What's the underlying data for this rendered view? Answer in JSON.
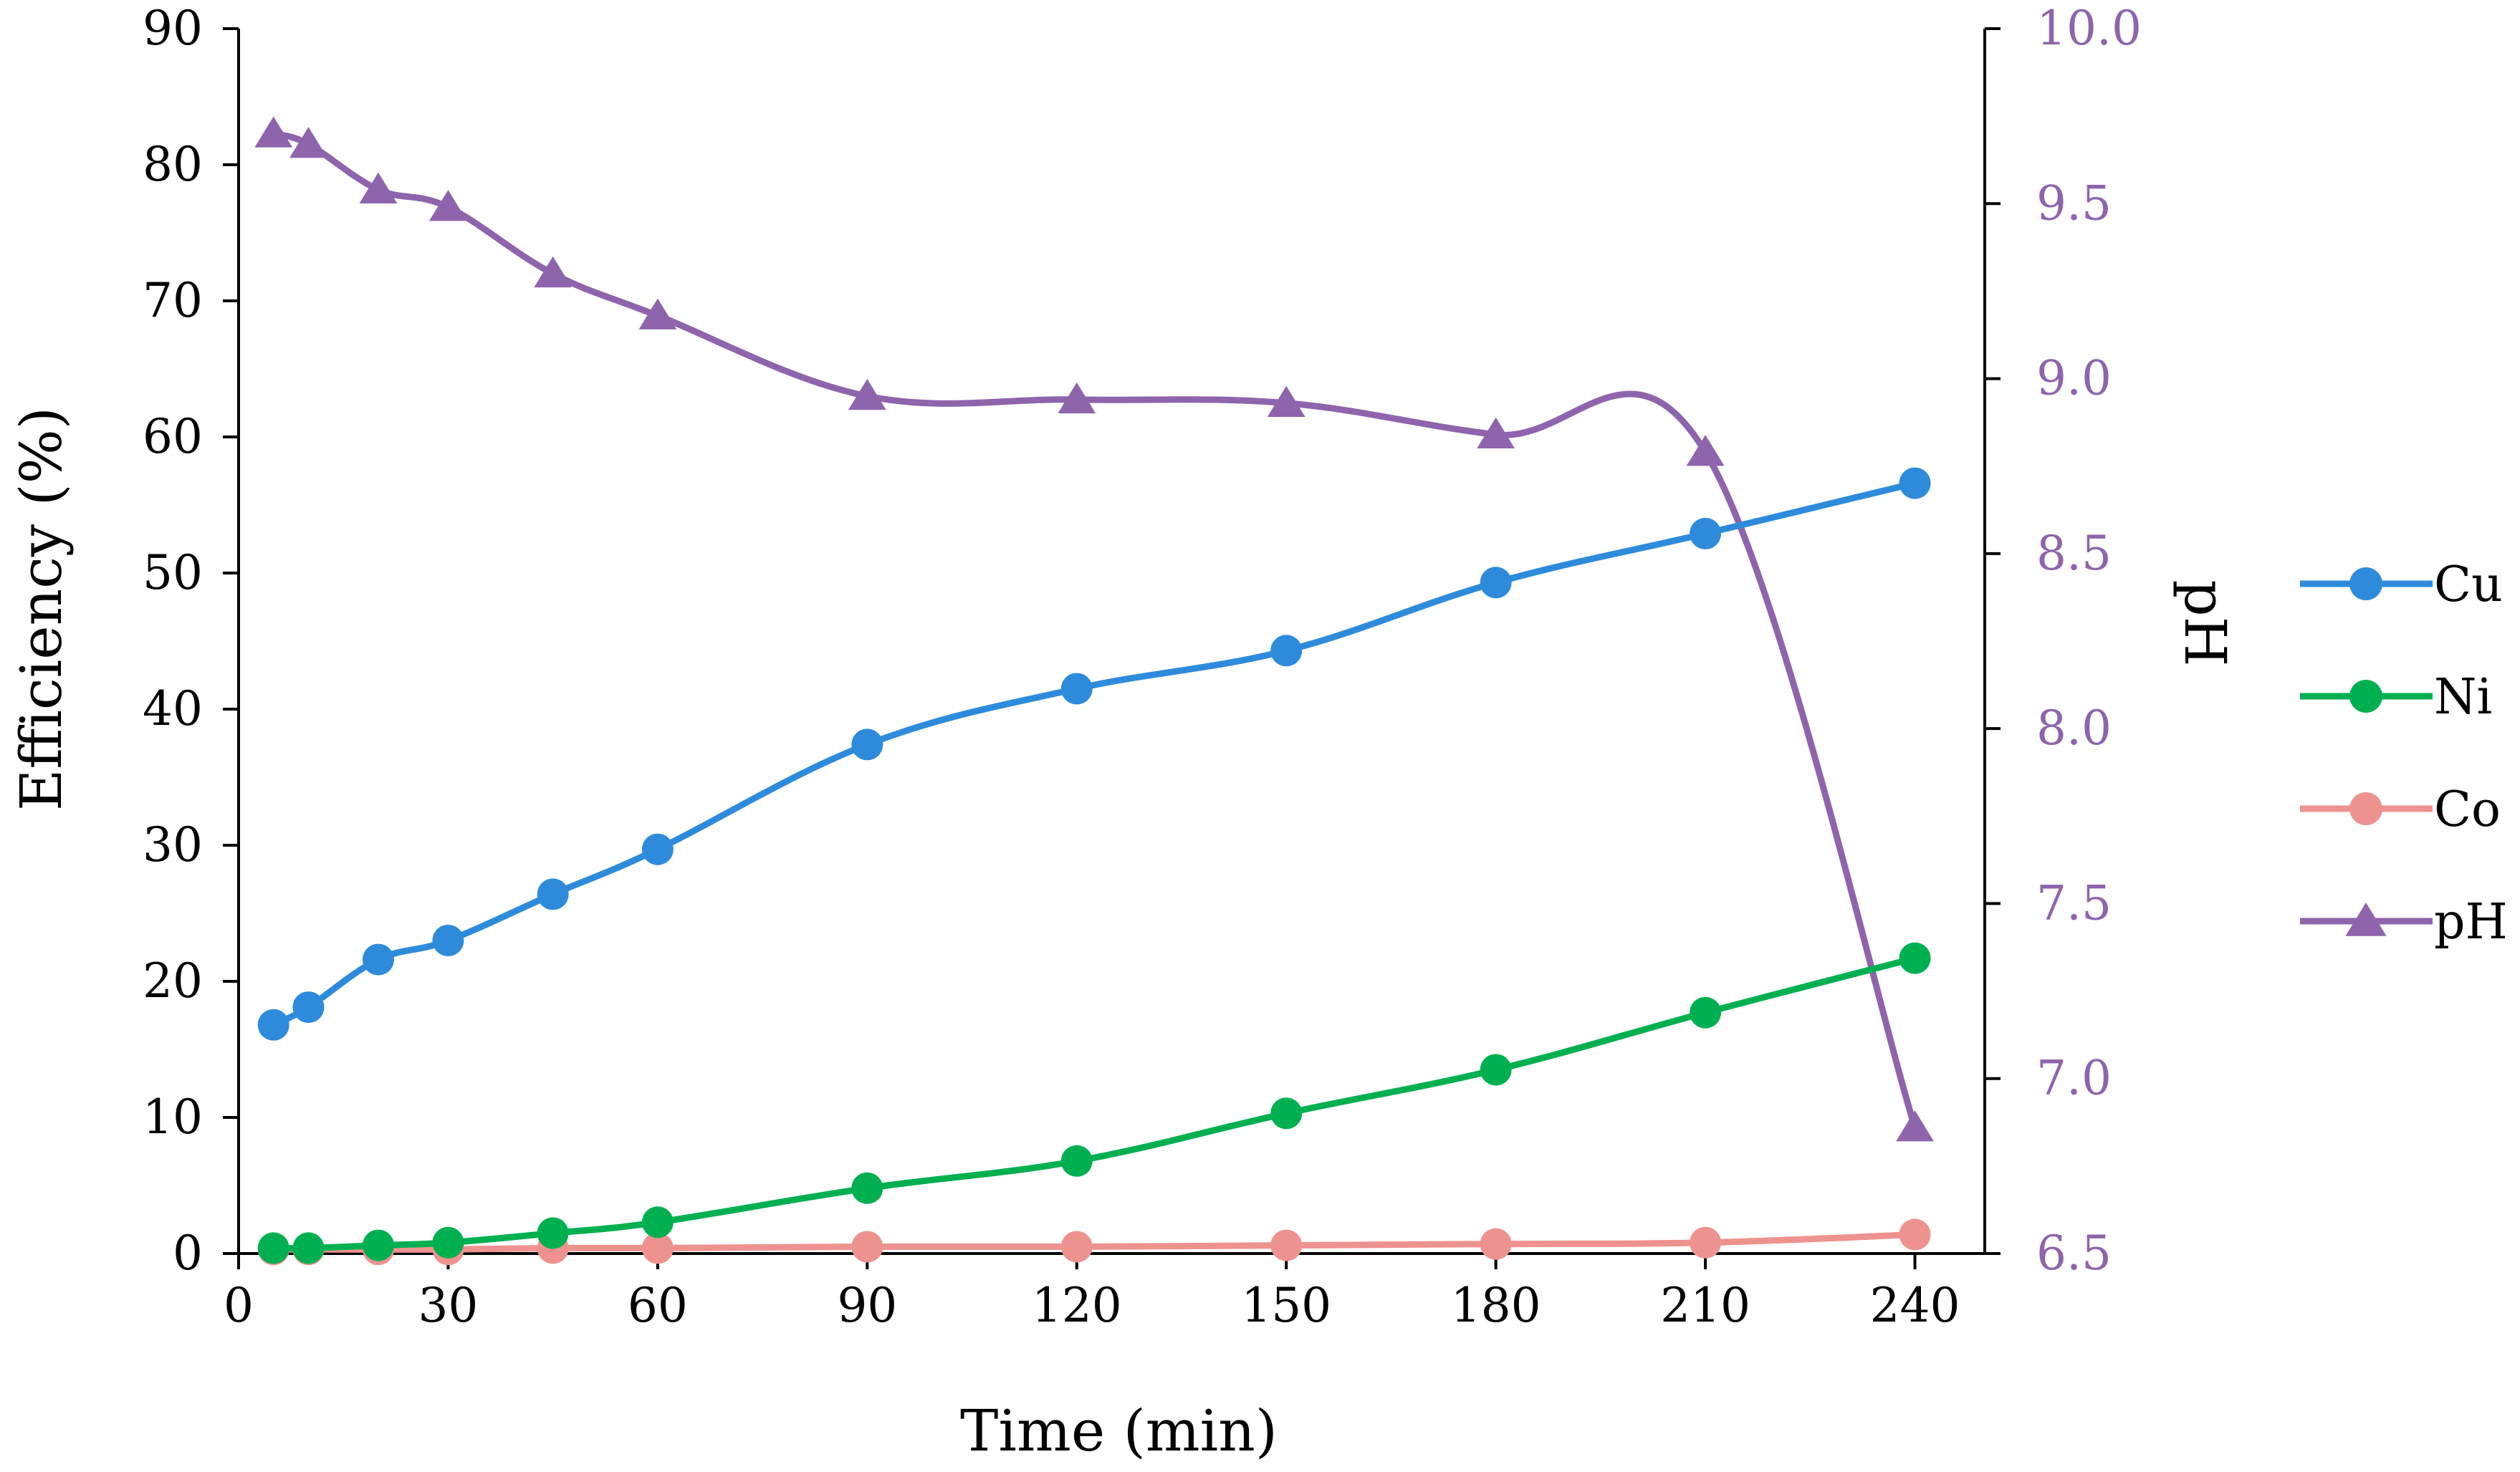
{
  "chart_data": {
    "type": "line",
    "title": "",
    "xlabel": "Time (min)",
    "ylabel": "Efficiency (%)",
    "y2label": "pH",
    "xlim": [
      0,
      250
    ],
    "ylim": [
      0,
      90
    ],
    "y2lim": [
      6.5,
      10.0
    ],
    "xticks": [
      0,
      30,
      60,
      90,
      120,
      150,
      180,
      210,
      240
    ],
    "xtick_labels": [
      "0",
      "30",
      "60",
      "90",
      "120",
      "150",
      "180",
      "210",
      "240"
    ],
    "yticks": [
      0,
      10,
      20,
      30,
      40,
      50,
      60,
      70,
      80,
      90
    ],
    "ytick_labels": [
      "0",
      "10",
      "20",
      "30",
      "40",
      "50",
      "60",
      "70",
      "80",
      "90"
    ],
    "y2ticks": [
      6.5,
      7.0,
      7.5,
      8.0,
      8.5,
      9.0,
      9.5,
      10.0
    ],
    "y2tick_labels": [
      "6.5",
      "7.0",
      "7.5",
      "8.0",
      "8.5",
      "9.0",
      "9.5",
      "10.0"
    ],
    "grid": false,
    "legend_position": "right",
    "x": [
      5,
      10,
      20,
      30,
      45,
      60,
      90,
      120,
      150,
      180,
      210,
      240
    ],
    "series": [
      {
        "name": "Cu",
        "axis": "left",
        "marker": "circle",
        "color": "#2E8BDB",
        "values": [
          16.8,
          18.1,
          21.6,
          23.0,
          26.4,
          29.7,
          37.4,
          41.5,
          44.3,
          49.3,
          52.9,
          56.6
        ]
      },
      {
        "name": "Ni",
        "axis": "left",
        "marker": "circle",
        "color": "#00B050",
        "values": [
          0.4,
          0.4,
          0.6,
          0.8,
          1.5,
          2.3,
          4.8,
          6.8,
          10.3,
          13.5,
          17.7,
          21.7
        ]
      },
      {
        "name": "Co",
        "axis": "left",
        "marker": "circle",
        "color": "#EE9290",
        "values": [
          0.3,
          0.3,
          0.3,
          0.3,
          0.4,
          0.4,
          0.5,
          0.5,
          0.6,
          0.7,
          0.8,
          1.4
        ]
      },
      {
        "name": "pH",
        "axis": "right",
        "marker": "triangle",
        "color": "#8E64AC",
        "values": [
          9.7,
          9.67,
          9.54,
          9.49,
          9.3,
          9.18,
          8.95,
          8.94,
          8.93,
          8.84,
          8.79,
          6.86
        ]
      }
    ],
    "colors": {
      "axis": "#000000",
      "right_axis": "#8E64AC"
    }
  }
}
